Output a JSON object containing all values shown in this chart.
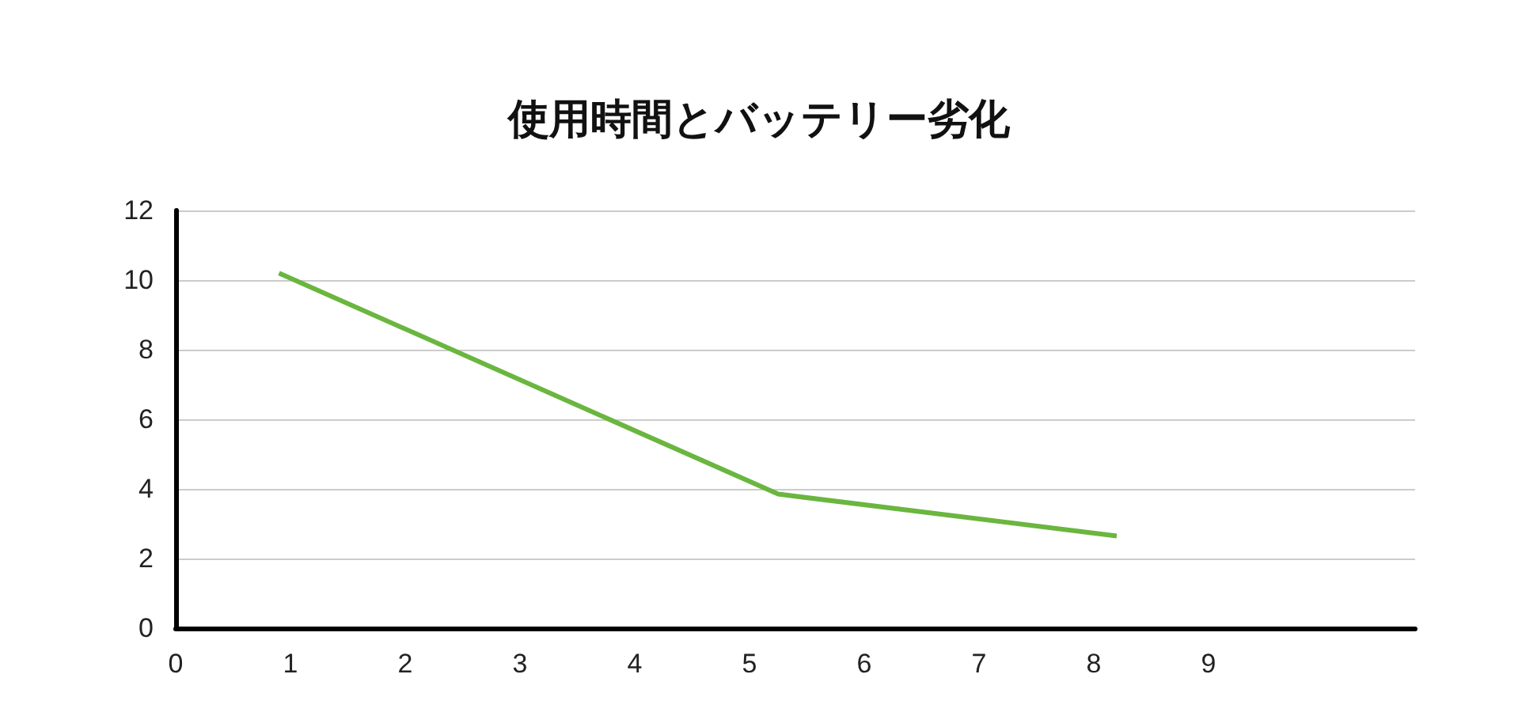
{
  "chart_data": {
    "type": "line",
    "title": "使用時間とバッテリー劣化",
    "x": [
      0.9,
      5.25,
      8.2
    ],
    "series": [
      {
        "color": "#6ab63f",
        "values": [
          10.2,
          3.85,
          2.65
        ]
      }
    ],
    "xlim": [
      0,
      10.8
    ],
    "xticks": [
      0,
      1,
      2,
      3,
      4,
      5,
      6,
      7,
      8,
      9
    ],
    "ylim": [
      0,
      12
    ],
    "yticks": [
      0,
      2,
      4,
      6,
      8,
      10,
      12
    ],
    "grid": "y",
    "marker": "none",
    "line_style": "solid"
  }
}
